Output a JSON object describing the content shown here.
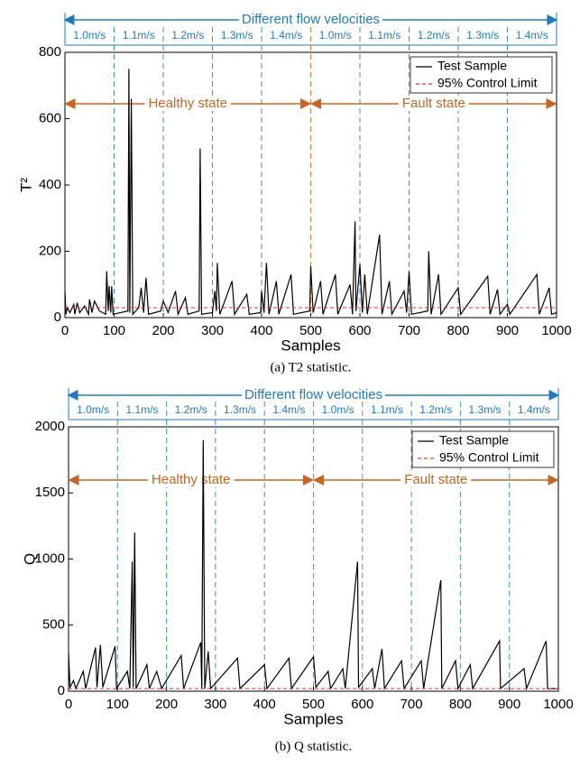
{
  "chart_data": [
    {
      "type": "line",
      "xlabel": "Samples",
      "ylabel": "T²",
      "caption": "(a) T2 statistic.",
      "xlim": [
        0,
        1000
      ],
      "ylim": [
        0,
        800
      ],
      "xticks": [
        0,
        100,
        200,
        300,
        400,
        500,
        600,
        700,
        800,
        900,
        1000
      ],
      "yticks": [
        0,
        200,
        400,
        600,
        800
      ],
      "legend": "upper right",
      "header": "Different flow velocities",
      "segments": [
        "1.0m/s",
        "1.1m/s",
        "1.2m/s",
        "1.3m/s",
        "1.4m/s",
        "1.0m/s",
        "1.1m/s",
        "1.2m/s",
        "1.3m/s",
        "1.4m/s"
      ],
      "dividers": [
        100,
        200,
        300,
        400,
        500,
        600,
        700,
        800,
        900
      ],
      "states": [
        "Healthy state",
        "Fault state"
      ],
      "series": [
        {
          "name": "Test Sample",
          "color": "#000000",
          "x": [
            0,
            2,
            5,
            10,
            18,
            20,
            25,
            30,
            40,
            48,
            50,
            55,
            60,
            70,
            83,
            85,
            88,
            90,
            93,
            95,
            98,
            128,
            130,
            132,
            135,
            138,
            150,
            155,
            160,
            165,
            170,
            195,
            200,
            210,
            225,
            230,
            245,
            250,
            273,
            275,
            278,
            300,
            305,
            308,
            310,
            315,
            340,
            345,
            370,
            375,
            398,
            400,
            405,
            410,
            415,
            430,
            435,
            460,
            465,
            498,
            500,
            505,
            520,
            525,
            550,
            555,
            580,
            585,
            590,
            592,
            600,
            605,
            610,
            615,
            640,
            645,
            660,
            665,
            690,
            695,
            700,
            705,
            738,
            740,
            745,
            760,
            765,
            800,
            805,
            860,
            865,
            880,
            885,
            900,
            905,
            960,
            965,
            985,
            990,
            1000
          ],
          "values": [
            80,
            10,
            30,
            15,
            40,
            10,
            45,
            15,
            35,
            10,
            55,
            15,
            50,
            20,
            10,
            140,
            20,
            95,
            15,
            95,
            10,
            20,
            750,
            15,
            660,
            10,
            30,
            90,
            15,
            120,
            10,
            20,
            50,
            15,
            80,
            10,
            60,
            10,
            20,
            510,
            10,
            15,
            80,
            20,
            165,
            10,
            110,
            10,
            70,
            10,
            15,
            80,
            15,
            165,
            10,
            110,
            10,
            130,
            10,
            20,
            155,
            15,
            110,
            10,
            130,
            10,
            100,
            10,
            290,
            20,
            160,
            15,
            130,
            10,
            250,
            10,
            110,
            10,
            80,
            15,
            140,
            10,
            20,
            200,
            10,
            130,
            10,
            90,
            10,
            125,
            10,
            85,
            10,
            40,
            10,
            130,
            10,
            90,
            10,
            15
          ]
        },
        {
          "name": "95% Control Limit",
          "color": "#e8302a",
          "x": [
            0,
            1000
          ],
          "values": [
            30,
            30
          ]
        }
      ]
    },
    {
      "type": "line",
      "xlabel": "Samples",
      "ylabel": "Q",
      "caption": "(b) Q statistic.",
      "xlim": [
        0,
        1000
      ],
      "ylim": [
        0,
        2000
      ],
      "xticks": [
        0,
        100,
        200,
        300,
        400,
        500,
        600,
        700,
        800,
        900,
        1000
      ],
      "yticks": [
        0,
        500,
        1000,
        1500,
        2000
      ],
      "legend": "upper right",
      "header": "Different flow velocities",
      "segments": [
        "1.0m/s",
        "1.1m/s",
        "1.2m/s",
        "1.3m/s",
        "1.4m/s",
        "1.0m/s",
        "1.1m/s",
        "1.2m/s",
        "1.3m/s",
        "1.4m/s"
      ],
      "dividers": [
        100,
        200,
        300,
        400,
        500,
        600,
        700,
        800,
        900
      ],
      "states": [
        "Healthy state",
        "Fault state"
      ],
      "series": [
        {
          "name": "Test Sample",
          "color": "#000000",
          "x": [
            0,
            3,
            10,
            15,
            30,
            35,
            55,
            58,
            65,
            70,
            95,
            98,
            120,
            125,
            130,
            132,
            135,
            138,
            160,
            165,
            180,
            190,
            230,
            235,
            270,
            272,
            275,
            278,
            285,
            290,
            345,
            350,
            400,
            405,
            450,
            455,
            500,
            505,
            530,
            535,
            560,
            565,
            590,
            592,
            620,
            625,
            640,
            645,
            680,
            685,
            720,
            725,
            760,
            762,
            790,
            795,
            820,
            825,
            880,
            882,
            930,
            935,
            975,
            978,
            1000
          ],
          "values": [
            290,
            30,
            80,
            20,
            150,
            20,
            330,
            30,
            350,
            30,
            340,
            20,
            150,
            20,
            980,
            30,
            1200,
            20,
            200,
            20,
            150,
            20,
            270,
            20,
            370,
            20,
            1900,
            20,
            300,
            20,
            250,
            20,
            200,
            20,
            250,
            20,
            260,
            30,
            150,
            20,
            170,
            20,
            980,
            30,
            170,
            20,
            320,
            20,
            230,
            20,
            230,
            20,
            840,
            20,
            230,
            20,
            200,
            20,
            380,
            20,
            170,
            20,
            380,
            20,
            20
          ]
        },
        {
          "name": "95% Control Limit",
          "color": "#e8302a",
          "x": [
            0,
            1000
          ],
          "values": [
            20,
            20
          ]
        }
      ]
    }
  ]
}
